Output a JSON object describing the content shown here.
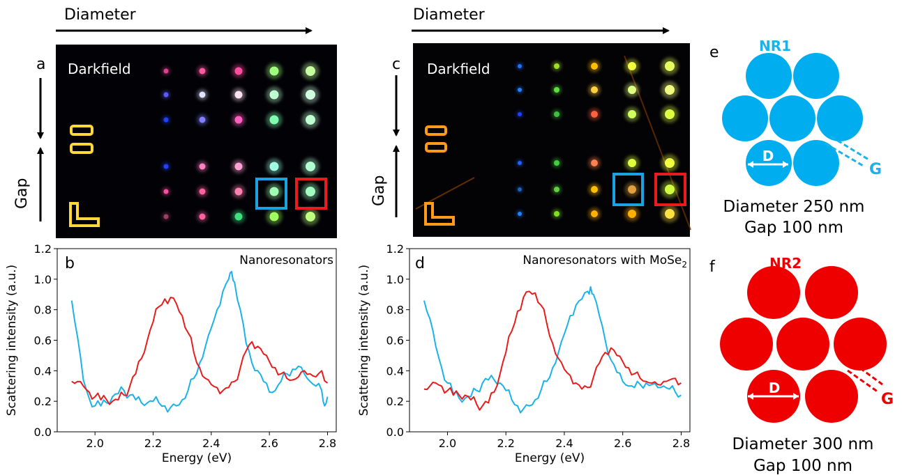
{
  "figure": {
    "panel_a": {
      "letter": "a",
      "title": "Darkfield",
      "diameter_label": "Diameter",
      "gap_label": "Gap",
      "dot_colors": [
        [
          "#e04090",
          "#ff5aa0",
          "#ff4ea0",
          "#a0ff7e",
          "#c8ffa0"
        ],
        [
          "#5a5aff",
          "#e0e0ff",
          "#ffe0f0",
          "#c0ffd0",
          "#d0ffe0"
        ],
        [
          "#2040ff",
          "#8080ff",
          "#ff60c0",
          "#80ffb0",
          "#c0ffd0"
        ],
        [
          "#2040ff",
          "#ff80c0",
          "#ffa0d0",
          "#a0ffe0",
          "#b0ffd0"
        ],
        [
          "#ff50a0",
          "#ff60a0",
          "#ff80b0",
          "#a0ffb0",
          "#a0ffc0"
        ],
        [
          "#a04060",
          "#ff60a0",
          "#40e080",
          "#a0ff60",
          "#c0ff80"
        ]
      ]
    },
    "panel_c": {
      "letter": "c",
      "title": "Darkfield",
      "diameter_label": "Diameter",
      "gap_label": "Gap",
      "dot_colors": [
        [
          "#2070ff",
          "#a0e020",
          "#ffc000",
          "#f0ff40",
          "#e8ff60"
        ],
        [
          "#2080ff",
          "#60e040",
          "#ffd040",
          "#e0ff80",
          "#f0ff80"
        ],
        [
          "#2040ff",
          "#40c040",
          "#ff6040",
          "#d0ff60",
          "#e0ff40"
        ],
        [
          "#2060ff",
          "#40d040",
          "#ff8050",
          "#e0ff40",
          "#f0ff40"
        ],
        [
          "#2060c0",
          "#60d040",
          "#ffc000",
          "#e0a040",
          "#d0ff40"
        ],
        [
          "#2080ff",
          "#80e020",
          "#ffb000",
          "#ffb000",
          "#ffe040"
        ]
      ]
    },
    "panel_e": {
      "letter": "e",
      "name": "NR1",
      "d_label": "D",
      "g_label": "G",
      "line1": "Diameter 250 nm",
      "line2": "Gap 100 nm",
      "color": "#00aeef"
    },
    "panel_f": {
      "letter": "f",
      "name": "NR2",
      "d_label": "D",
      "g_label": "G",
      "line1": "Diameter 300 nm",
      "line2": "Gap 100 nm",
      "color": "#ee0000"
    }
  },
  "chart_data": [
    {
      "panel": "b",
      "type": "line",
      "title": "Nanoresonators",
      "xlabel": "Energy (eV)",
      "ylabel": "Scattering intensity (a.u.)",
      "xlim": [
        1.87,
        2.83
      ],
      "ylim": [
        0.0,
        1.2
      ],
      "xticks": [
        "2.0",
        "2.2",
        "2.4",
        "2.6",
        "2.8"
      ],
      "yticks": [
        "0.0",
        "0.2",
        "0.4",
        "0.6",
        "0.8",
        "1.0",
        "1.2"
      ],
      "grid": false,
      "series": [
        {
          "color": "#1ab2e8",
          "x": [
            1.92,
            1.94,
            1.96,
            1.98,
            2.0,
            2.02,
            2.04,
            2.06,
            2.08,
            2.1,
            2.12,
            2.14,
            2.16,
            2.18,
            2.2,
            2.22,
            2.24,
            2.26,
            2.28,
            2.3,
            2.32,
            2.34,
            2.36,
            2.38,
            2.4,
            2.42,
            2.44,
            2.46,
            2.47,
            2.48,
            2.5,
            2.52,
            2.54,
            2.56,
            2.58,
            2.6,
            2.62,
            2.64,
            2.66,
            2.68,
            2.7,
            2.72,
            2.74,
            2.76,
            2.78,
            2.79,
            2.8
          ],
          "y": [
            0.86,
            0.62,
            0.34,
            0.22,
            0.17,
            0.17,
            0.19,
            0.23,
            0.25,
            0.27,
            0.24,
            0.21,
            0.19,
            0.19,
            0.2,
            0.19,
            0.17,
            0.16,
            0.17,
            0.21,
            0.27,
            0.35,
            0.45,
            0.56,
            0.68,
            0.8,
            0.92,
            1.0,
            1.05,
            0.98,
            0.8,
            0.58,
            0.45,
            0.4,
            0.33,
            0.26,
            0.27,
            0.33,
            0.38,
            0.41,
            0.43,
            0.38,
            0.33,
            0.3,
            0.27,
            0.17,
            0.23
          ]
        },
        {
          "color": "#e81c1c",
          "x": [
            1.92,
            1.94,
            1.96,
            1.98,
            2.0,
            2.02,
            2.04,
            2.06,
            2.08,
            2.1,
            2.12,
            2.14,
            2.16,
            2.18,
            2.2,
            2.22,
            2.24,
            2.26,
            2.28,
            2.3,
            2.32,
            2.34,
            2.36,
            2.38,
            2.4,
            2.42,
            2.44,
            2.46,
            2.48,
            2.5,
            2.52,
            2.54,
            2.56,
            2.58,
            2.6,
            2.62,
            2.64,
            2.66,
            2.68,
            2.7,
            2.72,
            2.74,
            2.76,
            2.78,
            2.8
          ],
          "y": [
            0.33,
            0.33,
            0.3,
            0.26,
            0.23,
            0.21,
            0.21,
            0.2,
            0.21,
            0.24,
            0.3,
            0.38,
            0.48,
            0.6,
            0.72,
            0.82,
            0.87,
            0.88,
            0.84,
            0.76,
            0.65,
            0.52,
            0.42,
            0.35,
            0.31,
            0.29,
            0.27,
            0.29,
            0.33,
            0.42,
            0.53,
            0.59,
            0.56,
            0.51,
            0.46,
            0.42,
            0.38,
            0.35,
            0.34,
            0.36,
            0.4,
            0.38,
            0.36,
            0.4,
            0.32
          ]
        }
      ]
    },
    {
      "panel": "d",
      "type": "line",
      "title": "Nanoresonators with MoSe",
      "title_sub": "2",
      "xlabel": "Energy (eV)",
      "ylabel": "Scattering intensity (a.u.)",
      "xlim": [
        1.87,
        2.83
      ],
      "ylim": [
        0.0,
        1.2
      ],
      "xticks": [
        "2.0",
        "2.2",
        "2.4",
        "2.6",
        "2.8"
      ],
      "yticks": [
        "0.0",
        "0.2",
        "0.4",
        "0.6",
        "0.8",
        "1.0",
        "1.2"
      ],
      "grid": false,
      "series": [
        {
          "color": "#1ab2e8",
          "x": [
            1.92,
            1.94,
            1.96,
            1.98,
            2.0,
            2.02,
            2.04,
            2.06,
            2.08,
            2.1,
            2.12,
            2.14,
            2.16,
            2.18,
            2.2,
            2.22,
            2.24,
            2.26,
            2.28,
            2.3,
            2.32,
            2.34,
            2.36,
            2.38,
            2.4,
            2.42,
            2.44,
            2.46,
            2.48,
            2.49,
            2.5,
            2.52,
            2.54,
            2.56,
            2.58,
            2.6,
            2.62,
            2.64,
            2.66,
            2.68,
            2.7,
            2.72,
            2.74,
            2.76,
            2.78,
            2.8
          ],
          "y": [
            0.86,
            0.74,
            0.56,
            0.42,
            0.32,
            0.25,
            0.22,
            0.22,
            0.23,
            0.27,
            0.32,
            0.34,
            0.34,
            0.32,
            0.27,
            0.21,
            0.17,
            0.15,
            0.17,
            0.21,
            0.27,
            0.33,
            0.42,
            0.52,
            0.64,
            0.76,
            0.83,
            0.87,
            0.92,
            0.95,
            0.9,
            0.76,
            0.6,
            0.47,
            0.39,
            0.33,
            0.3,
            0.29,
            0.31,
            0.32,
            0.31,
            0.29,
            0.3,
            0.28,
            0.26,
            0.24
          ]
        },
        {
          "color": "#e81c1c",
          "x": [
            1.92,
            1.94,
            1.96,
            1.98,
            2.0,
            2.02,
            2.04,
            2.06,
            2.08,
            2.1,
            2.12,
            2.14,
            2.16,
            2.18,
            2.2,
            2.22,
            2.24,
            2.26,
            2.28,
            2.3,
            2.32,
            2.34,
            2.36,
            2.38,
            2.4,
            2.42,
            2.44,
            2.46,
            2.48,
            2.5,
            2.52,
            2.54,
            2.56,
            2.58,
            2.6,
            2.62,
            2.64,
            2.66,
            2.68,
            2.7,
            2.72,
            2.74,
            2.76,
            2.78,
            2.8
          ],
          "y": [
            0.28,
            0.3,
            0.32,
            0.3,
            0.27,
            0.24,
            0.24,
            0.24,
            0.21,
            0.18,
            0.17,
            0.19,
            0.26,
            0.38,
            0.52,
            0.66,
            0.79,
            0.88,
            0.92,
            0.91,
            0.83,
            0.71,
            0.58,
            0.48,
            0.41,
            0.37,
            0.32,
            0.28,
            0.29,
            0.36,
            0.45,
            0.52,
            0.55,
            0.5,
            0.46,
            0.42,
            0.38,
            0.35,
            0.33,
            0.32,
            0.31,
            0.33,
            0.34,
            0.35,
            0.32
          ]
        }
      ]
    }
  ]
}
